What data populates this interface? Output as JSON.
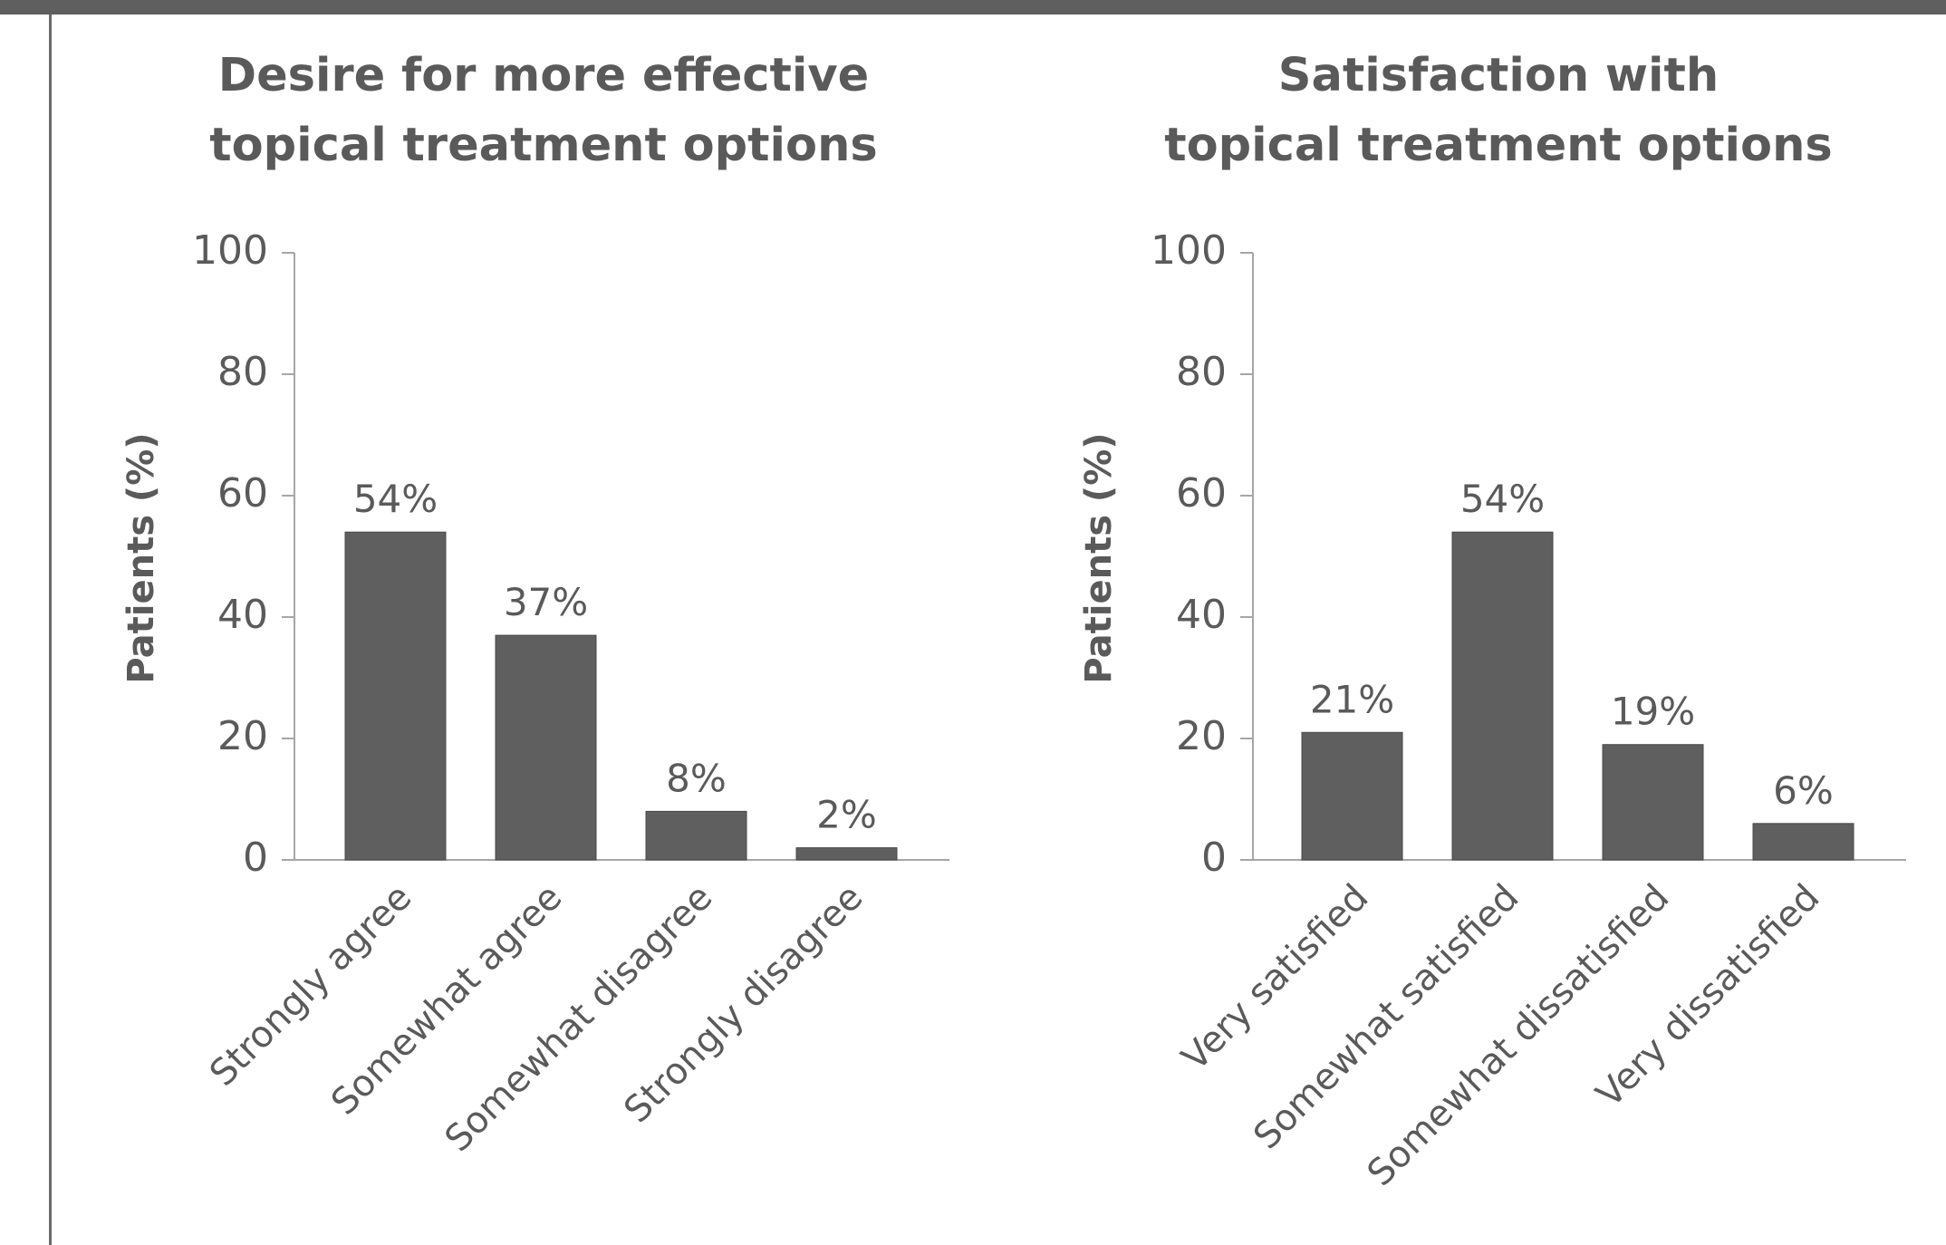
{
  "chart_data": [
    {
      "type": "bar",
      "title_lines": [
        "Desire for more effective",
        "topical treatment options"
      ],
      "ylabel": "Patients (%)",
      "xlabel": "",
      "ylim": [
        0,
        100
      ],
      "yticks": [
        0,
        20,
        40,
        60,
        80,
        100
      ],
      "categories": [
        "Strongly agree",
        "Somewhat agree",
        "Somewhat disagree",
        "Strongly disagree"
      ],
      "values": [
        54,
        37,
        8,
        2
      ],
      "data_labels": [
        "54%",
        "37%",
        "8%",
        "2%"
      ],
      "bar_color": "#5f5f5f",
      "grid": false,
      "legend": "none"
    },
    {
      "type": "bar",
      "title_lines": [
        "Satisfaction with",
        "topical treatment options"
      ],
      "ylabel": "Patients (%)",
      "xlabel": "",
      "ylim": [
        0,
        100
      ],
      "yticks": [
        0,
        20,
        40,
        60,
        80,
        100
      ],
      "categories": [
        "Very satisfied",
        "Somewhat satisfied",
        "Somewhat dissatisfied",
        "Very dissatisfied"
      ],
      "values": [
        21,
        54,
        19,
        6
      ],
      "data_labels": [
        "21%",
        "54%",
        "19%",
        "6%"
      ],
      "bar_color": "#5f5f5f",
      "grid": false,
      "legend": "none"
    }
  ],
  "colors": {
    "frame": "#5f5f5f",
    "text": "#5a5a5a",
    "axis": "#a6a6a6"
  }
}
